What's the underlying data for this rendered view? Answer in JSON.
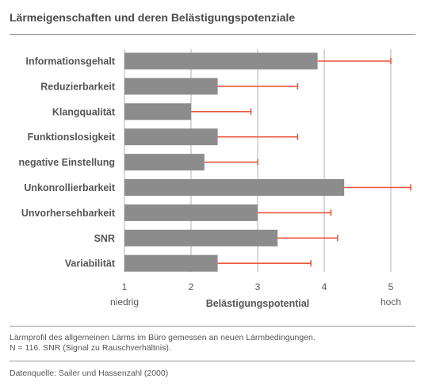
{
  "title": "Lärmeigenschaften und deren Belästigungspotenziale",
  "caption": {
    "line1": "Lärmprofil des allgemeinen Lärms im Büro gemessen an neuen Lärmbedingungen.",
    "line2": "N = 116. SNR (Signal zu Rauschverhältnis)."
  },
  "source": "Datenquelle: Sailer und Hassenzahl (2000)",
  "colors": {
    "bar": "#8c8c8c",
    "error": "#e8583e",
    "grid": "#b0b0b0"
  },
  "chart_data": {
    "type": "bar",
    "orientation": "horizontal",
    "categories": [
      "Informationsgehalt",
      "Reduzierbarkeit",
      "Klangqualität",
      "Funktionslosigkeit",
      "negative Einstellung",
      "Unkonrollierbarkeit",
      "Unvorhersehbarkeit",
      "SNR",
      "Variabilität"
    ],
    "values": [
      3.9,
      2.4,
      2.0,
      2.4,
      2.2,
      4.3,
      3.0,
      3.3,
      2.4
    ],
    "error_upper": [
      5.0,
      3.6,
      2.9,
      3.6,
      3.0,
      5.3,
      4.1,
      4.2,
      3.8
    ],
    "xlim": [
      1,
      5.35
    ],
    "xticks": [
      1,
      2,
      3,
      4,
      5
    ],
    "xlabel": "Belästigungspotential",
    "xlabel_low": "niedrig",
    "xlabel_high": "hoch",
    "grid": true
  }
}
